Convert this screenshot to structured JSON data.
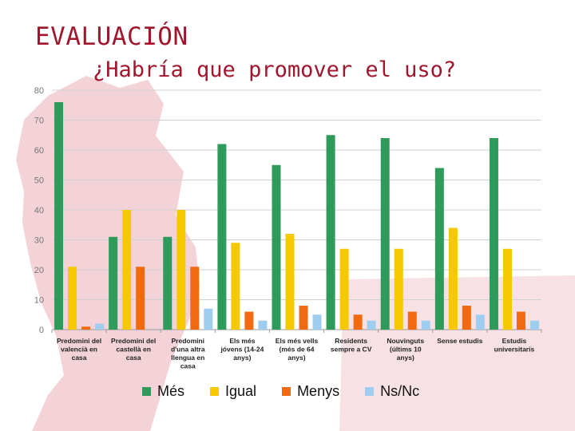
{
  "slide": {
    "title": "EVALUACIÓN",
    "subtitle": "¿Habría que promover el uso?"
  },
  "colors": {
    "title": "#a0162d",
    "background_decoration": "#f2cfd3"
  },
  "chart_data": {
    "type": "bar",
    "title": "",
    "xlabel": "",
    "ylabel": "",
    "ylim": [
      0,
      80
    ],
    "yticks": [
      0,
      10,
      20,
      30,
      40,
      50,
      60,
      70,
      80
    ],
    "grid": true,
    "legend_position": "bottom",
    "categories": [
      [
        "Predomini del",
        "valencià en",
        "casa"
      ],
      [
        "Predomini del",
        "castellà en",
        "casa"
      ],
      [
        "Predomini",
        "d'una altra",
        "llengua en",
        "casa"
      ],
      [
        "Els més",
        "jóvens (14-24",
        "anys)"
      ],
      [
        "Els més vells",
        "(més de 64",
        "anys)"
      ],
      [
        "Residents",
        "sempre a CV"
      ],
      [
        "Nouvinguts",
        "(últims 10",
        "anys)"
      ],
      [
        "Sense estudis"
      ],
      [
        "Estudis",
        "universitaris"
      ]
    ],
    "series": [
      {
        "name": "Més",
        "color": "#2e9b5a",
        "values": [
          76,
          31,
          31,
          62,
          55,
          65,
          64,
          54,
          64
        ]
      },
      {
        "name": "Igual",
        "color": "#f6c800",
        "values": [
          21,
          40,
          40,
          29,
          32,
          27,
          27,
          34,
          27
        ]
      },
      {
        "name": "Menys",
        "color": "#f26a10",
        "values": [
          1,
          21,
          21,
          6,
          8,
          5,
          6,
          8,
          6
        ]
      },
      {
        "name": "Ns/Nc",
        "color": "#9fcdf0",
        "values": [
          2,
          0,
          7,
          3,
          5,
          3,
          3,
          5,
          3
        ]
      }
    ]
  }
}
